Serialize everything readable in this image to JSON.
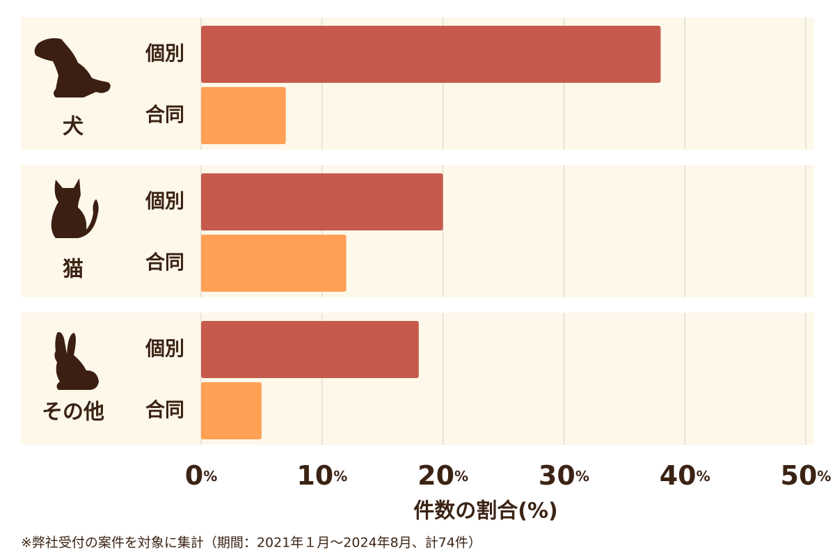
{
  "chart_data": {
    "type": "bar",
    "orientation": "horizontal",
    "categories": [
      "犬",
      "猫",
      "その他"
    ],
    "series": [
      {
        "name": "個別",
        "color": "#c65a4c",
        "values": [
          38,
          20,
          18
        ]
      },
      {
        "name": "合同",
        "color": "#ffa055",
        "values": [
          7,
          12,
          5
        ]
      }
    ],
    "xlim": [
      0,
      50
    ],
    "xticks": [
      {
        "value": 0,
        "label": "0%"
      },
      {
        "value": 10,
        "label": "10%"
      },
      {
        "value": 20,
        "label": "20%"
      },
      {
        "value": 30,
        "label": "30%"
      },
      {
        "value": 40,
        "label": "40%"
      },
      {
        "value": 50,
        "label": "50%"
      }
    ],
    "xlabel": "件数の割合(%)",
    "grid": true,
    "note": "※弊社受付の案件を対象に集計（期間：2021年１月～2024年8月、計74件）"
  }
}
